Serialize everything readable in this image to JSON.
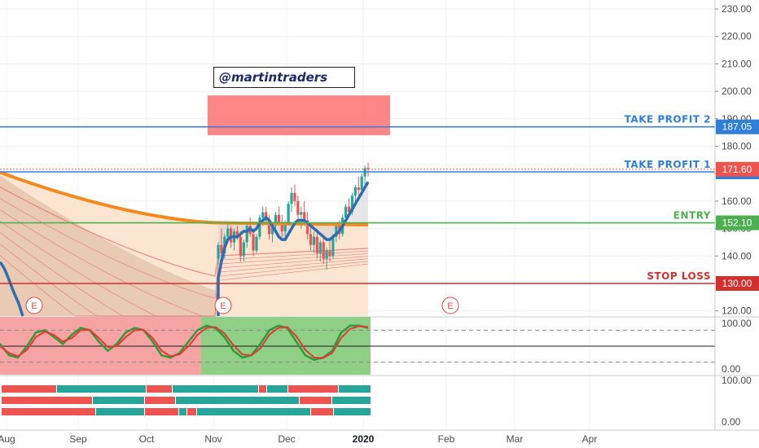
{
  "watermark": {
    "handle": "@martintraders"
  },
  "colors": {
    "take_profit": "#2962ff",
    "entry": "#4caf50",
    "stop_loss": "#d32f2f",
    "last_price": "#ef5350",
    "candle_up": "#26a69a",
    "candle_down": "#ef5350",
    "ema_fast": "#2f6db3",
    "ema_slow": "#f48a1e",
    "stoch_k": "#2e9b3a",
    "stoch_d": "#e53935"
  },
  "price_axis": {
    "ticks": [
      "230.00",
      "220.00",
      "210.00",
      "200.00",
      "190.00",
      "180.00",
      "170.00",
      "160.00",
      "150.00",
      "140.00",
      "130.00",
      "120.00"
    ],
    "values": [
      230,
      220,
      210,
      200,
      190,
      180,
      170,
      160,
      150,
      140,
      130,
      120
    ]
  },
  "levels": [
    {
      "id": "take_profit_2",
      "label": "TAKE PROFIT 2",
      "price": 187.05,
      "tag": "187.05",
      "color": "#2f7ed8"
    },
    {
      "id": "take_profit_1",
      "label": "TAKE PROFIT 1",
      "price": 170.65,
      "tag": "170.65",
      "color": "#2f7ed8"
    },
    {
      "id": "entry",
      "label": "ENTRY",
      "price": 152.1,
      "tag": "152.10",
      "color": "#4caf50"
    },
    {
      "id": "stop_loss",
      "label": "STOP LOSS",
      "price": 130.0,
      "tag": "130.00",
      "color": "#d32f2f"
    }
  ],
  "last_price": {
    "value": 171.6,
    "tag": "171.60"
  },
  "target_zone": {
    "low": 184,
    "high": 198.5,
    "color": "#ff6b6b"
  },
  "earnings_markers": [
    "E",
    "E",
    "E"
  ],
  "oscillator_axis": {
    "ticks": [
      "100.00",
      "0.00"
    ]
  },
  "lower_axis": {
    "ticks": [
      "100.00",
      "0.00"
    ]
  },
  "time_axis": {
    "labels": [
      "Aug",
      "Sep",
      "Oct",
      "Nov",
      "Dec",
      "2020",
      "Feb",
      "Mar",
      "Apr"
    ],
    "bold": [
      false,
      false,
      false,
      false,
      false,
      true,
      false,
      false,
      false
    ]
  },
  "chart_data": {
    "type": "candlestick",
    "title": "",
    "ylim": [
      115,
      233
    ],
    "x_labels": [
      "Aug",
      "Sep",
      "Oct",
      "Nov",
      "Dec",
      "2020",
      "Feb",
      "Mar",
      "Apr"
    ],
    "candles": [
      [
        139,
        145,
        137,
        144
      ],
      [
        144,
        150,
        140,
        141
      ],
      [
        141,
        148,
        139,
        147
      ],
      [
        147,
        152,
        145,
        150
      ],
      [
        150,
        151,
        143,
        145
      ],
      [
        145,
        150,
        142,
        149
      ],
      [
        149,
        151,
        146,
        147
      ],
      [
        147,
        149,
        138,
        140
      ],
      [
        140,
        146,
        138,
        145
      ],
      [
        145,
        152,
        143,
        151
      ],
      [
        151,
        154,
        147,
        148
      ],
      [
        148,
        150,
        140,
        142
      ],
      [
        142,
        148,
        141,
        147
      ],
      [
        147,
        155,
        146,
        154
      ],
      [
        154,
        158,
        151,
        156
      ],
      [
        156,
        158,
        152,
        153
      ],
      [
        153,
        155,
        146,
        148
      ],
      [
        148,
        152,
        145,
        151
      ],
      [
        151,
        156,
        149,
        155
      ],
      [
        155,
        158,
        151,
        152
      ],
      [
        152,
        155,
        147,
        149
      ],
      [
        149,
        153,
        146,
        152
      ],
      [
        152,
        160,
        151,
        159
      ],
      [
        159,
        165,
        156,
        163
      ],
      [
        163,
        166,
        158,
        160
      ],
      [
        160,
        162,
        153,
        155
      ],
      [
        155,
        158,
        150,
        156
      ],
      [
        156,
        160,
        152,
        153
      ],
      [
        153,
        156,
        146,
        148
      ],
      [
        148,
        151,
        142,
        144
      ],
      [
        144,
        149,
        141,
        147
      ],
      [
        147,
        150,
        139,
        141
      ],
      [
        141,
        146,
        138,
        145
      ],
      [
        145,
        147,
        137,
        139
      ],
      [
        139,
        143,
        135,
        142
      ],
      [
        142,
        146,
        138,
        140
      ],
      [
        140,
        148,
        139,
        147
      ],
      [
        147,
        152,
        145,
        151
      ],
      [
        151,
        153,
        146,
        148
      ],
      [
        148,
        155,
        147,
        154
      ],
      [
        154,
        159,
        152,
        158
      ],
      [
        158,
        161,
        154,
        156
      ],
      [
        156,
        163,
        155,
        162
      ],
      [
        162,
        166,
        159,
        165
      ],
      [
        165,
        169,
        162,
        164
      ],
      [
        164,
        170,
        163,
        169
      ],
      [
        169,
        173,
        166,
        172
      ],
      [
        172,
        174,
        169,
        171.6
      ]
    ],
    "ema_fast": [
      132,
      138,
      143,
      146,
      147,
      147,
      147,
      148,
      149,
      149,
      150,
      149,
      150,
      152,
      153,
      154,
      153,
      151,
      149,
      147,
      146,
      146,
      148,
      150,
      152,
      153,
      153,
      153,
      152,
      151,
      150,
      149,
      148,
      147,
      146,
      146,
      147,
      148,
      149,
      151,
      153,
      155,
      157,
      159,
      161,
      163,
      165,
      167
    ],
    "ema_slow_start": 170.5,
    "ema_slow_end": 152.1,
    "stochastic": {
      "k": [
        55,
        30,
        25,
        50,
        80,
        85,
        70,
        55,
        75,
        90,
        85,
        60,
        40,
        55,
        80,
        90,
        85,
        60,
        30,
        25,
        35,
        60,
        85,
        95,
        90,
        70,
        40,
        25,
        30,
        55,
        85,
        95,
        90,
        60,
        30,
        20,
        25,
        40,
        80,
        95,
        95,
        90
      ],
      "d": [
        50,
        35,
        28,
        42,
        70,
        82,
        75,
        60,
        68,
        85,
        86,
        68,
        48,
        50,
        70,
        85,
        86,
        68,
        40,
        28,
        32,
        50,
        75,
        90,
        92,
        78,
        52,
        32,
        30,
        45,
        75,
        90,
        92,
        72,
        42,
        25,
        24,
        35,
        68,
        88,
        94,
        92
      ]
    }
  }
}
